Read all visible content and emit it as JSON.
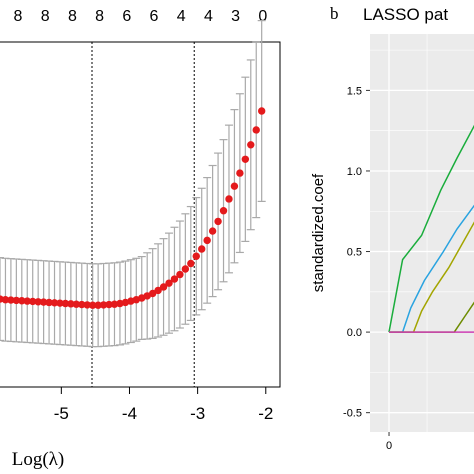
{
  "chart_data": [
    {
      "type": "scatter",
      "panel_letter": "",
      "title": "",
      "xlabel": "Log(λ)",
      "ylabel": "",
      "x_ticks": [
        -5,
        -4,
        -3,
        -2
      ],
      "x_tick_labels": [
        "-5",
        "-4",
        "-3",
        "-2"
      ],
      "top_labels": [
        {
          "x": -5.7,
          "label": "8"
        },
        {
          "x": -5.13,
          "label": "8"
        },
        {
          "x": -4.56,
          "label": "8"
        },
        {
          "x": -3.97,
          "label": "8"
        },
        {
          "x": -3.44,
          "label": "6"
        },
        {
          "x": -2.94,
          "label": "6"
        },
        {
          "x": -2.43,
          "label": "4"
        },
        {
          "x": -1.95,
          "label": "4"
        },
        {
          "x": -1.49,
          "label": "3"
        },
        {
          "x": -1.02,
          "label": "0"
        }
      ],
      "reference_lines_x": [
        -4.55,
        -3.05
      ],
      "xlim": [
        -5.9,
        -1.85
      ],
      "ylim": [
        0.0,
        1.0
      ],
      "colors": {
        "point": "#e41a1c",
        "errorbar": "#a9a9a9",
        "refline": "#000000"
      },
      "series": [
        {
          "x": [
            -5.9,
            -5.82,
            -5.74,
            -5.66,
            -5.58,
            -5.5,
            -5.42,
            -5.34,
            -5.26,
            -5.18,
            -5.1,
            -5.02,
            -4.94,
            -4.86,
            -4.78,
            -4.7,
            -4.62,
            -4.54,
            -4.46,
            -4.38,
            -4.3,
            -4.22,
            -4.14,
            -4.06,
            -3.98,
            -3.9,
            -3.82,
            -3.74,
            -3.66,
            -3.58,
            -3.5,
            -3.42,
            -3.34,
            -3.26,
            -3.18,
            -3.1,
            -3.02,
            -2.94,
            -2.86,
            -2.78,
            -2.7,
            -2.62,
            -2.54,
            -2.46,
            -2.38,
            -2.3,
            -2.22,
            -2.14,
            -2.06
          ],
          "y": [
            0.255,
            0.253,
            0.252,
            0.251,
            0.25,
            0.249,
            0.248,
            0.247,
            0.246,
            0.245,
            0.244,
            0.243,
            0.242,
            0.241,
            0.24,
            0.239,
            0.238,
            0.237,
            0.237,
            0.238,
            0.239,
            0.24,
            0.242,
            0.245,
            0.249,
            0.253,
            0.258,
            0.264,
            0.271,
            0.28,
            0.29,
            0.301,
            0.313,
            0.326,
            0.342,
            0.358,
            0.379,
            0.4,
            0.425,
            0.452,
            0.48,
            0.511,
            0.545,
            0.582,
            0.62,
            0.66,
            0.702,
            0.745,
            0.8
          ],
          "err": [
            0.12,
            0.12,
            0.12,
            0.12,
            0.12,
            0.12,
            0.12,
            0.12,
            0.12,
            0.12,
            0.12,
            0.12,
            0.12,
            0.12,
            0.12,
            0.12,
            0.12,
            0.12,
            0.12,
            0.12,
            0.12,
            0.12,
            0.12,
            0.12,
            0.12,
            0.12,
            0.12,
            0.125,
            0.13,
            0.135,
            0.14,
            0.145,
            0.15,
            0.155,
            0.16,
            0.165,
            0.17,
            0.176,
            0.182,
            0.19,
            0.198,
            0.206,
            0.214,
            0.222,
            0.23,
            0.238,
            0.246,
            0.254,
            0.262
          ]
        }
      ]
    },
    {
      "type": "line",
      "panel_letter": "b",
      "title": "LASSO pat",
      "xlabel": "",
      "ylabel": "standardized.coef",
      "x_ticks": [
        0
      ],
      "x_tick_labels": [
        "0"
      ],
      "y_ticks": [
        -0.5,
        0.0,
        0.5,
        1.0,
        1.5
      ],
      "y_tick_labels": [
        "-0.5",
        "0.0",
        "0.5",
        "1.0",
        "1.5"
      ],
      "xlim": [
        -0.7,
        3.2
      ],
      "ylim": [
        -0.62,
        1.85
      ],
      "colors": {
        "panel_bg": "#ebebeb",
        "grid": "#ffffff"
      },
      "series": [
        {
          "color": "#1aad3c",
          "x": [
            0,
            0.5,
            1.2,
            1.9,
            2.5,
            3.2
          ],
          "y": [
            0,
            0.45,
            0.6,
            0.88,
            1.08,
            1.3
          ]
        },
        {
          "color": "#29a3e0",
          "x": [
            0,
            0.5,
            0.8,
            1.3,
            2.0,
            2.5,
            3.2
          ],
          "y": [
            0,
            0,
            0.15,
            0.32,
            0.5,
            0.64,
            0.8
          ]
        },
        {
          "color": "#a3a500",
          "x": [
            0,
            0.9,
            1.2,
            1.6,
            2.2,
            2.6,
            3.2
          ],
          "y": [
            0,
            0,
            0.13,
            0.25,
            0.4,
            0.52,
            0.7
          ]
        },
        {
          "color": "#6d8c00",
          "x": [
            0,
            2.4,
            2.8,
            3.2
          ],
          "y": [
            0,
            0,
            0.1,
            0.2
          ]
        },
        {
          "color": "#cc3cb4",
          "x": [
            0,
            3.2
          ],
          "y": [
            0,
            0
          ]
        }
      ]
    }
  ]
}
